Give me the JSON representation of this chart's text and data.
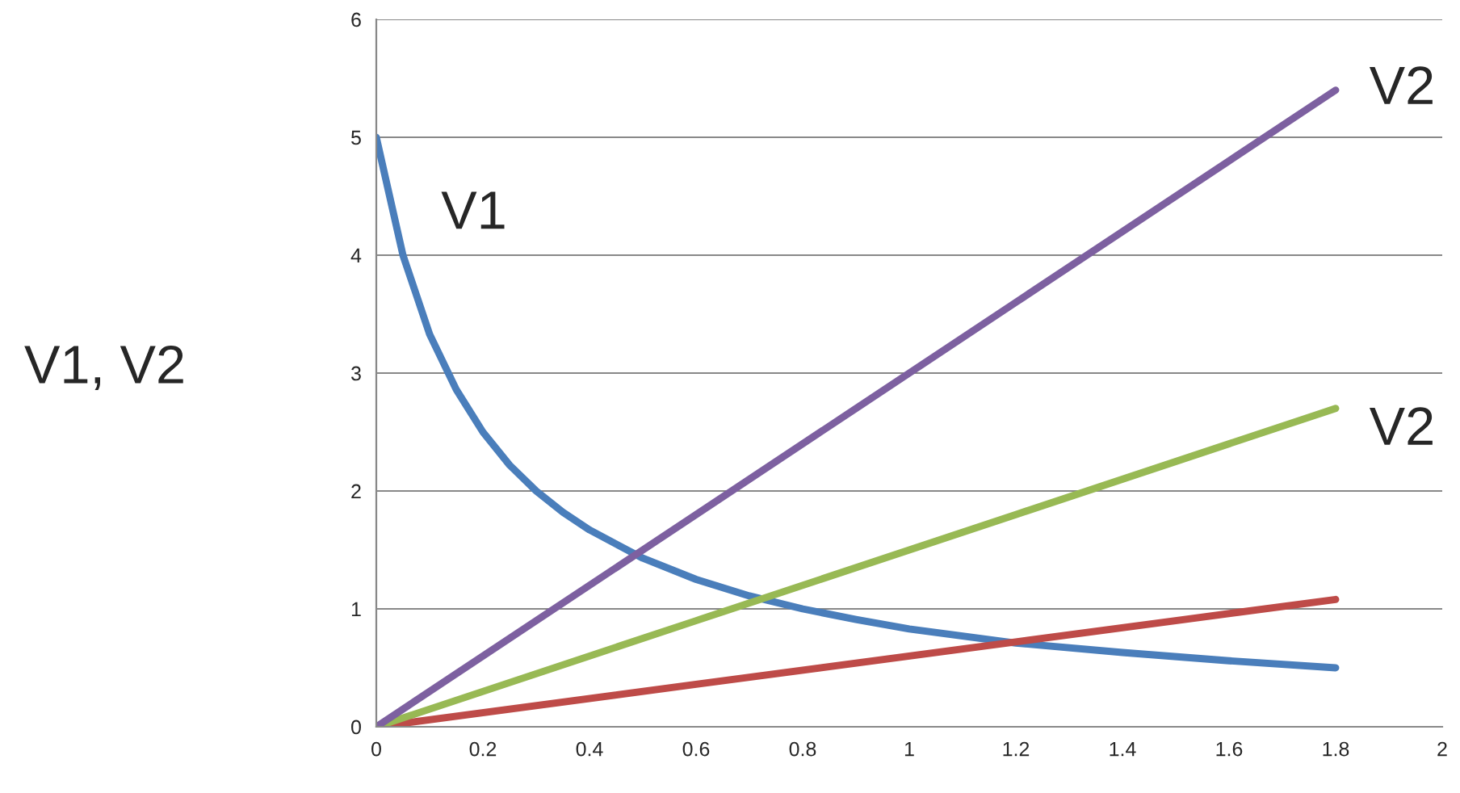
{
  "chart_data": {
    "type": "line",
    "ylabel": "V1, V2",
    "series": [
      {
        "name": "V1",
        "color": "#4a7ebb",
        "x": [
          0,
          0.05,
          0.1,
          0.15,
          0.2,
          0.25,
          0.3,
          0.35,
          0.4,
          0.5,
          0.6,
          0.7,
          0.8,
          0.9,
          1.0,
          1.2,
          1.4,
          1.6,
          1.8
        ],
        "values": [
          5,
          4,
          3.33,
          2.86,
          2.5,
          2.22,
          2,
          1.82,
          1.67,
          1.43,
          1.25,
          1.11,
          1,
          0.91,
          0.83,
          0.71,
          0.63,
          0.56,
          0.5
        ]
      },
      {
        "color": "#be4b48",
        "x": [
          0,
          0.6,
          1.2,
          1.8
        ],
        "values": [
          0,
          0.36,
          0.72,
          1.08
        ]
      },
      {
        "name": "V2",
        "color": "#98b954",
        "x": [
          0,
          0.6,
          1.2,
          1.8
        ],
        "values": [
          0,
          0.9,
          1.8,
          2.7
        ]
      },
      {
        "name": "V2",
        "color": "#7d60a0",
        "x": [
          0,
          0.6,
          1.2,
          1.8
        ],
        "values": [
          0,
          1.8,
          3.6,
          5.4
        ]
      }
    ],
    "xlim": [
      0,
      2
    ],
    "xticks": [
      0,
      0.2,
      0.4,
      0.6,
      0.8,
      1,
      1.2,
      1.4,
      1.6,
      1.8,
      2
    ],
    "ylim": [
      0,
      6
    ],
    "yticks": [
      0,
      1,
      2,
      3,
      4,
      5,
      6
    ],
    "grid": "y",
    "marker": "none",
    "line_style": "solid",
    "legend": false
  }
}
